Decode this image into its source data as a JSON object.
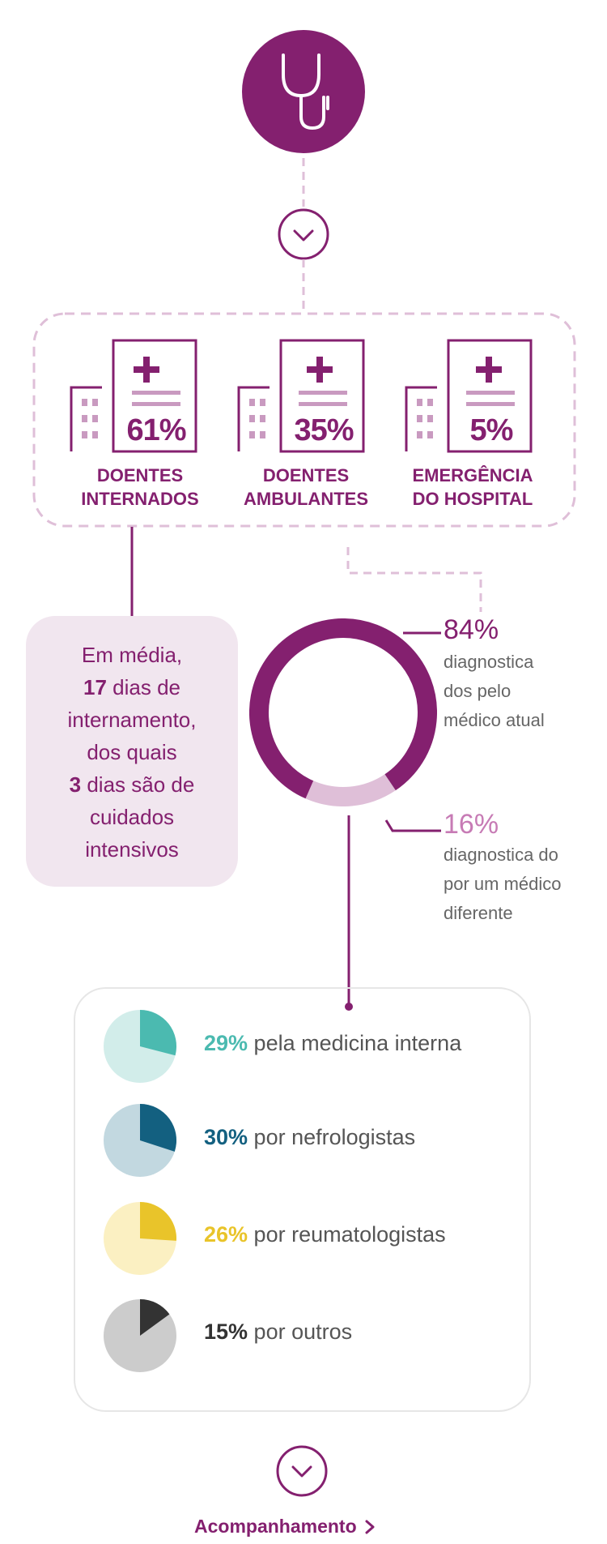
{
  "colors": {
    "brand": "#84206f",
    "brand_light": "#dfbfd8",
    "stay_box_bg": "#f1e6ef",
    "internal_medicine": "#4bbab0",
    "nephrology": "#136080",
    "rheumatology": "#e9c42a",
    "others": "#333333"
  },
  "icons": {
    "top": "stethoscope-icon",
    "chevrons": "chevron-down-icon",
    "hospitals": "hospital-icon",
    "followup": "chevron-right-icon"
  },
  "hospital": {
    "items": [
      {
        "pct": "61%",
        "line1": "DOENTES",
        "line2": "INTERNADOS"
      },
      {
        "pct": "35%",
        "line1": "DOENTES",
        "line2": "AMBULANTES"
      },
      {
        "pct": "5%",
        "line1": "EMERGÊNCIA",
        "line2": "DO HOSPITAL"
      }
    ]
  },
  "stay": {
    "l1": "Em média,",
    "n1": "17",
    "l2": " dias de",
    "l3": "internamento,",
    "l4": "dos quais",
    "n2": "3",
    "l5": " dias são de",
    "l6": "cuidados",
    "l7": "intensivos"
  },
  "diagnosis": {
    "current": {
      "pct": "84%",
      "line1": "diagnostica",
      "line2": "dos pelo",
      "line3": "médico atual",
      "value": 84
    },
    "other": {
      "pct": "16%",
      "line1": "diagnostica do",
      "line2": "por um médico",
      "line3": "diferente",
      "value": 16
    }
  },
  "specialties": [
    {
      "pct": "29%",
      "label": " pela medicina interna",
      "value": 29
    },
    {
      "pct": "30%",
      "label": " por nefrologistas",
      "value": 30
    },
    {
      "pct": "26%",
      "label": " por reumatologistas",
      "value": 26
    },
    {
      "pct": "15%",
      "label": " por outros",
      "value": 15
    }
  ],
  "followup": {
    "label": "Acompanhamento"
  }
}
